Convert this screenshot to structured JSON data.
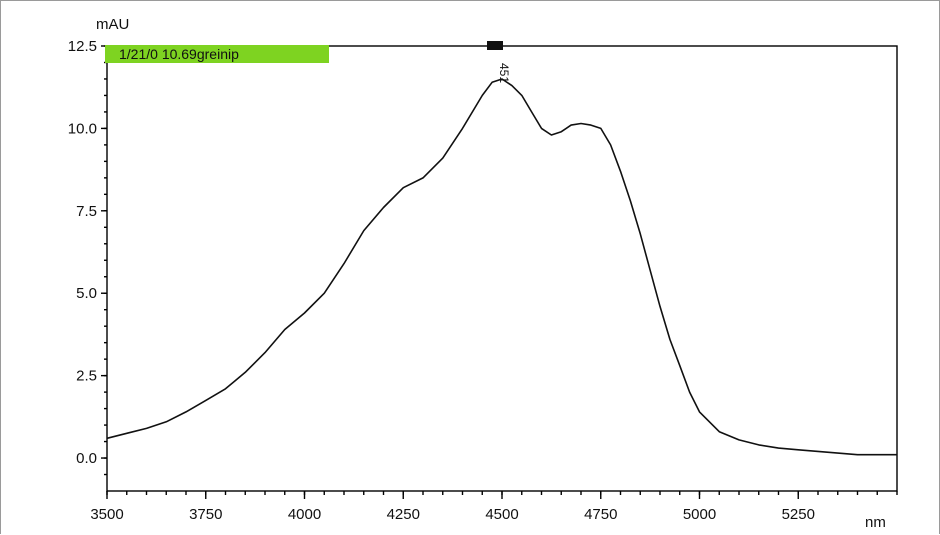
{
  "chart_data": {
    "type": "line",
    "unit_y": "mAU",
    "unit_x": "nm",
    "xlim": [
      3500,
      5500
    ],
    "ylim": [
      -1,
      12.5
    ],
    "x_ticks": [
      3500,
      3750,
      4000,
      4250,
      4500,
      4750,
      5000,
      5250
    ],
    "x_tick_labels": [
      "3500",
      "3750",
      "4000",
      "4250",
      "4500",
      "4750",
      "5000",
      "5250"
    ],
    "y_ticks": [
      0.0,
      2.5,
      5.0,
      7.5,
      10.0,
      12.5
    ],
    "y_tick_labels": [
      "0.0",
      "2.5",
      "5.0",
      "7.5",
      "10.0",
      "12.5"
    ],
    "legend": "1/21/0 10.69greinip",
    "peak_annotation": {
      "label": "451",
      "x": 4500
    },
    "series": [
      {
        "color": "#111111",
        "x": [
          3500,
          3550,
          3600,
          3650,
          3700,
          3750,
          3800,
          3850,
          3900,
          3950,
          4000,
          4050,
          4100,
          4150,
          4200,
          4250,
          4300,
          4350,
          4400,
          4450,
          4475,
          4500,
          4525,
          4550,
          4575,
          4600,
          4625,
          4650,
          4675,
          4700,
          4725,
          4750,
          4775,
          4800,
          4825,
          4850,
          4875,
          4900,
          4925,
          4950,
          4975,
          5000,
          5050,
          5100,
          5150,
          5200,
          5250,
          5300,
          5350,
          5400,
          5450,
          5500
        ],
        "y": [
          0.6,
          0.75,
          0.9,
          1.1,
          1.4,
          1.75,
          2.1,
          2.6,
          3.2,
          3.9,
          4.4,
          5.0,
          5.9,
          6.9,
          7.6,
          8.2,
          8.5,
          9.1,
          10.0,
          11.0,
          11.4,
          11.5,
          11.3,
          11.0,
          10.5,
          10.0,
          9.8,
          9.9,
          10.1,
          10.15,
          10.1,
          10.0,
          9.5,
          8.7,
          7.8,
          6.8,
          5.7,
          4.6,
          3.6,
          2.8,
          2.0,
          1.4,
          0.8,
          0.55,
          0.4,
          0.3,
          0.25,
          0.2,
          0.15,
          0.1,
          0.1,
          0.1
        ]
      }
    ]
  }
}
